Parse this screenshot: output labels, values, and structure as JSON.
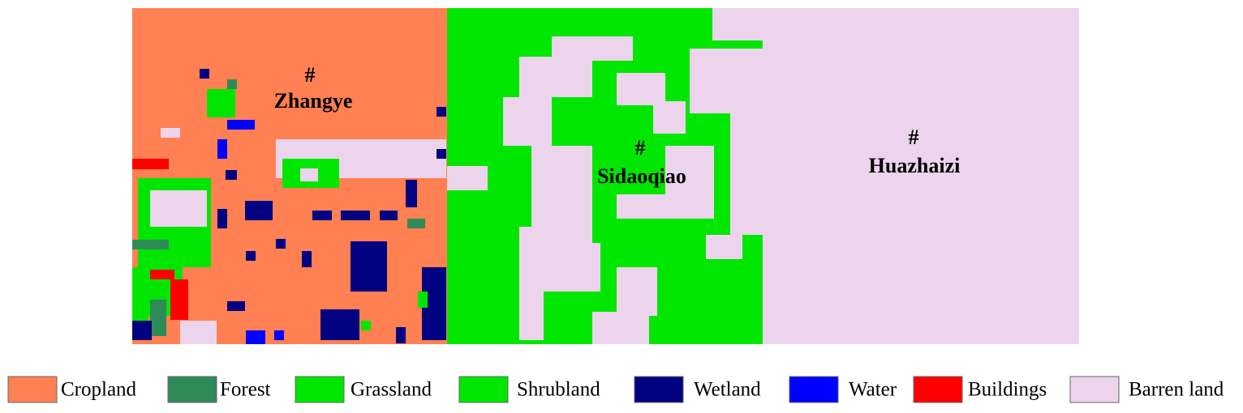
{
  "map": {
    "places": [
      {
        "marker": "#",
        "name": "Zhangye"
      },
      {
        "marker": "#",
        "name": "Sidaoqiao"
      },
      {
        "marker": "#",
        "name": "Huazhaizi"
      }
    ],
    "legend": [
      {
        "label": "Cropland",
        "color": "#ff8052"
      },
      {
        "label": "Forest",
        "color": "#2e8b57"
      },
      {
        "label": "Grassland",
        "color": "#00e600"
      },
      {
        "label": "Shrubland",
        "color": "#00e600"
      },
      {
        "label": "Wetland",
        "color": "#000080"
      },
      {
        "label": "Water",
        "color": "#0000ff"
      },
      {
        "label": "Buildings",
        "color": "#ff0000"
      },
      {
        "label": "Barren land",
        "color": "#ecd4ec"
      }
    ]
  }
}
